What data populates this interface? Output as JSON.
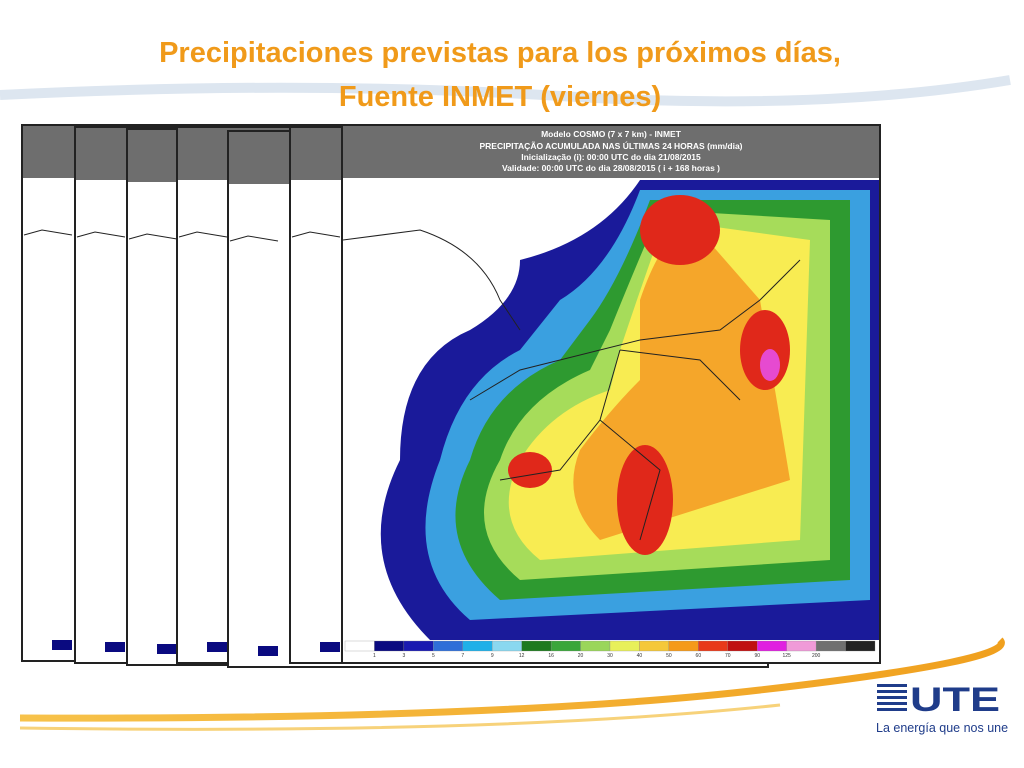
{
  "slide": {
    "title": [
      "Precipitaciones previstas para los próximos días,",
      "Fuente INMET (viernes)"
    ],
    "map": {
      "header": [
        "Modelo COSMO (7 x 7 km) - INMET",
        "PRECIPITAÇÃO ACUMULADA NAS ÚLTIMAS 24 HORAS (mm/dia)",
        "Inicialização (i): 00:00 UTC do dia 21/08/2015",
        "Validade: 00:00 UTC do dia 28/08/2015 ( i + 168 horas )"
      ],
      "colorbar_labels": [
        "1",
        "3",
        "5",
        "7",
        "9",
        "12",
        "16",
        "20",
        "30",
        "40",
        "50",
        "60",
        "70",
        "90",
        "125",
        "200"
      ]
    },
    "logo": {
      "name": "UTE",
      "tagline": "La energía que nos une"
    }
  }
}
